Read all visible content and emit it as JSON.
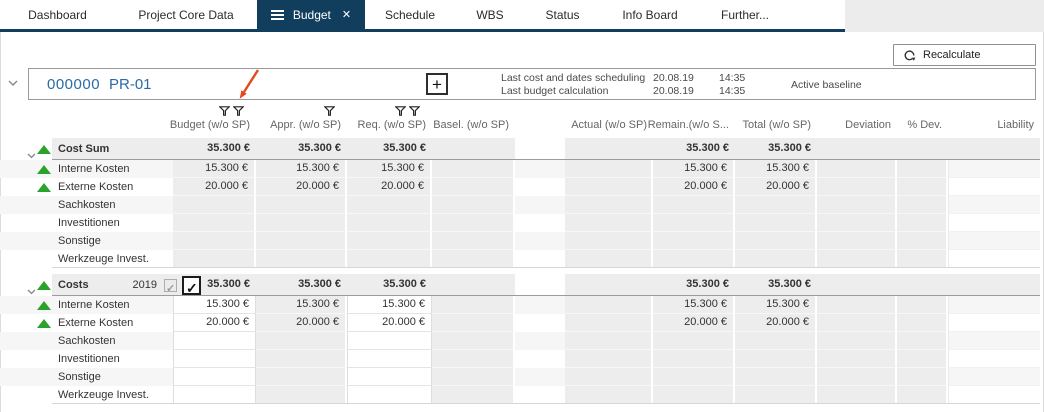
{
  "tab_bar": {
    "tabs": [
      {
        "label": "Dashboard",
        "active": false
      },
      {
        "label": "Project Core Data",
        "active": false
      },
      {
        "label": "Budget",
        "active": true,
        "has_menu_icon": true,
        "has_close_icon": true
      },
      {
        "label": "Schedule",
        "active": false
      },
      {
        "label": "WBS",
        "active": false
      },
      {
        "label": "Status",
        "active": false
      },
      {
        "label": "Info Board",
        "active": false
      },
      {
        "label": "Further...",
        "active": false
      }
    ]
  },
  "toolbar": {
    "recalculate_label": "Recalculate"
  },
  "project_header": {
    "number": "000000",
    "code": "PR-01",
    "add_button_label": "+",
    "info_rows": [
      {
        "label": "Last cost and dates scheduling",
        "date": "20.08.19",
        "time": "14:35"
      },
      {
        "label": "Last budget calculation",
        "date": "20.08.19",
        "time": "14:35"
      }
    ],
    "baseline_label": "Active baseline"
  },
  "annotation": {
    "type": "red-arrow",
    "points_at": "budget-column-filter-icons",
    "color": "#e2491b"
  },
  "icons": {
    "active_tab_menu": "hamburger-icon",
    "active_tab_close": "close-icon",
    "recalculate": "refresh-icon",
    "column_filter": "filter-funnel-icon",
    "row_trend": "green-up-triangle-icon",
    "expander": "chevron-down-icon"
  },
  "colors": {
    "accent_navy": "#123e5e",
    "link_blue": "#2a6ba6",
    "trend_green": "#29a329",
    "cell_gray": "#ededed",
    "arrow_red": "#e2491b"
  },
  "table": {
    "columns": [
      {
        "key": "budget",
        "label": "Budget (w/o SP)",
        "filter_icons": 2
      },
      {
        "key": "appr",
        "label": "Appr. (w/o SP)",
        "filter_icons": 1
      },
      {
        "key": "req",
        "label": "Req. (w/o SP)",
        "filter_icons": 2
      },
      {
        "key": "basel",
        "label": "Basel. (w/o SP)",
        "filter_icons": 0
      },
      {
        "key": "actual",
        "label": "Actual (w/o SP)",
        "filter_icons": 0
      },
      {
        "key": "remain",
        "label": "Remain.(w/o S...",
        "filter_icons": 0
      },
      {
        "key": "total",
        "label": "Total (w/o SP)",
        "filter_icons": 0
      },
      {
        "key": "deviation",
        "label": "Deviation",
        "filter_icons": 0
      },
      {
        "key": "pdev",
        "label": "% Dev.",
        "filter_icons": 0
      },
      {
        "key": "liability",
        "label": "Liability",
        "filter_icons": 0
      }
    ],
    "sections": [
      {
        "header": {
          "label": "Cost Sum",
          "trend": "up",
          "expanded": true,
          "values": {
            "budget": "35.300 €",
            "appr": "35.300 €",
            "req": "35.300 €",
            "remain": "35.300 €",
            "total": "35.300 €"
          }
        },
        "editable_columns": [],
        "rows": [
          {
            "label": "Interne Kosten",
            "trend": "up",
            "values": {
              "budget": "15.300 €",
              "appr": "15.300 €",
              "req": "15.300 €",
              "remain": "15.300 €",
              "total": "15.300 €"
            }
          },
          {
            "label": "Externe Kosten",
            "trend": "up",
            "values": {
              "budget": "20.000 €",
              "appr": "20.000 €",
              "req": "20.000 €",
              "remain": "20.000 €",
              "total": "20.000 €"
            }
          },
          {
            "label": "Sachkosten",
            "trend": null,
            "values": {}
          },
          {
            "label": "Investitionen",
            "trend": null,
            "values": {}
          },
          {
            "label": "Sonstige",
            "trend": null,
            "values": {}
          },
          {
            "label": "Werkzeuge Invest.",
            "trend": null,
            "values": {}
          }
        ]
      },
      {
        "header": {
          "label": "Costs",
          "year": "2019",
          "trend": "up",
          "expanded": true,
          "checkbox_small": {
            "checked": true,
            "disabled": true
          },
          "checkbox_big": {
            "checked": true,
            "disabled": false
          },
          "values": {
            "budget": "35.300 €",
            "appr": "35.300 €",
            "req": "35.300 €",
            "remain": "35.300 €",
            "total": "35.300 €"
          }
        },
        "editable_columns": [
          "budget",
          "req"
        ],
        "rows": [
          {
            "label": "Interne Kosten",
            "trend": "up",
            "values": {
              "budget": "15.300 €",
              "appr": "15.300 €",
              "req": "15.300 €",
              "remain": "15.300 €",
              "total": "15.300 €"
            }
          },
          {
            "label": "Externe Kosten",
            "trend": "up",
            "values": {
              "budget": "20.000 €",
              "appr": "20.000 €",
              "req": "20.000 €",
              "remain": "20.000 €",
              "total": "20.000 €"
            }
          },
          {
            "label": "Sachkosten",
            "trend": null,
            "values": {}
          },
          {
            "label": "Investitionen",
            "trend": null,
            "values": {}
          },
          {
            "label": "Sonstige",
            "trend": null,
            "values": {}
          },
          {
            "label": "Werkzeuge Invest.",
            "trend": null,
            "values": {}
          }
        ]
      }
    ]
  }
}
